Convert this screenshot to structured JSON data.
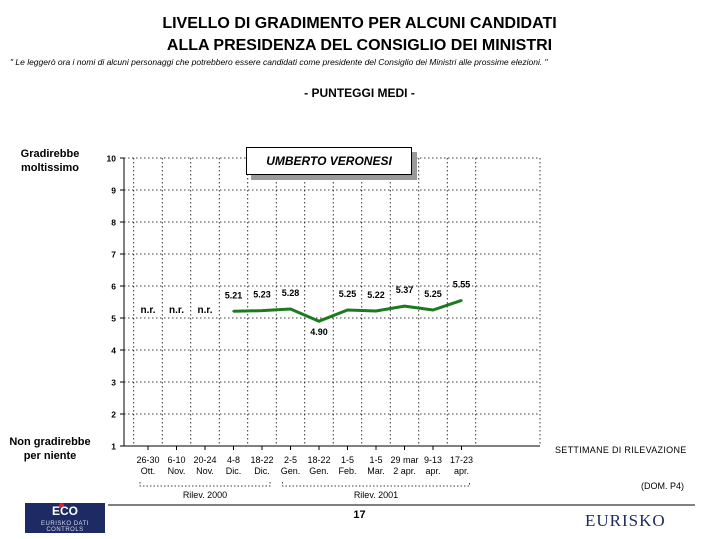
{
  "header": {
    "title_line1": "LIVELLO DI GRADIMENTO PER ALCUNI CANDIDATI",
    "title_line2": "ALLA PRESIDENZA DEL CONSIGLIO DEI MINISTRI",
    "note": "\" Le leggerò ora i nomi di alcuni personaggi che potrebbero essere candidati come presidente del Consiglio dei Ministri alle prossime elezioni. \"",
    "subtitle": "- PUNTEGGI MEDI -"
  },
  "yaxis": {
    "top_label_line1": "Gradirebbe",
    "top_label_line2": "moltissimo",
    "bottom_label_line1": "Non gradirebbe",
    "bottom_label_line2": "per niente"
  },
  "chart_data": {
    "type": "line",
    "title": "UMBERTO VERONESI",
    "xlabel": "SETTIMANE DI RILEVAZIONE",
    "ylim": [
      1,
      10
    ],
    "yticks": [
      "1",
      "2",
      "3",
      "4",
      "5",
      "6",
      "7",
      "8",
      "9",
      "10"
    ],
    "grid": true,
    "categories": [
      {
        "line1": "26-30",
        "line2": "Ott."
      },
      {
        "line1": "6-10",
        "line2": "Nov."
      },
      {
        "line1": "20-24",
        "line2": "Nov."
      },
      {
        "line1": "4-8",
        "line2": "Dic."
      },
      {
        "line1": "18-22",
        "line2": "Dic."
      },
      {
        "line1": "2-5",
        "line2": "Gen."
      },
      {
        "line1": "18-22",
        "line2": "Gen."
      },
      {
        "line1": "1-5",
        "line2": "Feb."
      },
      {
        "line1": "1-5",
        "line2": "Mar."
      },
      {
        "line1": "29 mar",
        "line2": "2 apr."
      },
      {
        "line1": "9-13",
        "line2": "apr."
      },
      {
        "line1": "17-23",
        "line2": "apr."
      }
    ],
    "values": [
      null,
      null,
      null,
      5.21,
      5.23,
      5.28,
      4.9,
      5.25,
      5.22,
      5.37,
      5.25,
      5.55
    ],
    "data_labels": [
      "n.r.",
      "n.r.",
      "n.r.",
      "5.21",
      "5.23",
      "5.28",
      "4.90",
      "5.25",
      "5.22",
      "5.37",
      "5.25",
      "5.55"
    ],
    "line_color": "#1e7a1e",
    "groups": [
      {
        "label": "Rilev. 2000",
        "from": 0,
        "to": 4
      },
      {
        "label": "Rilev. 2001",
        "from": 5,
        "to": 11
      }
    ]
  },
  "footer": {
    "source_code": "(DOM. P4)",
    "page_number": "17",
    "logo_left": "ECO",
    "logo_left_sub": "EURISKO DATI CONTROLS",
    "logo_right": "EURISKO"
  }
}
